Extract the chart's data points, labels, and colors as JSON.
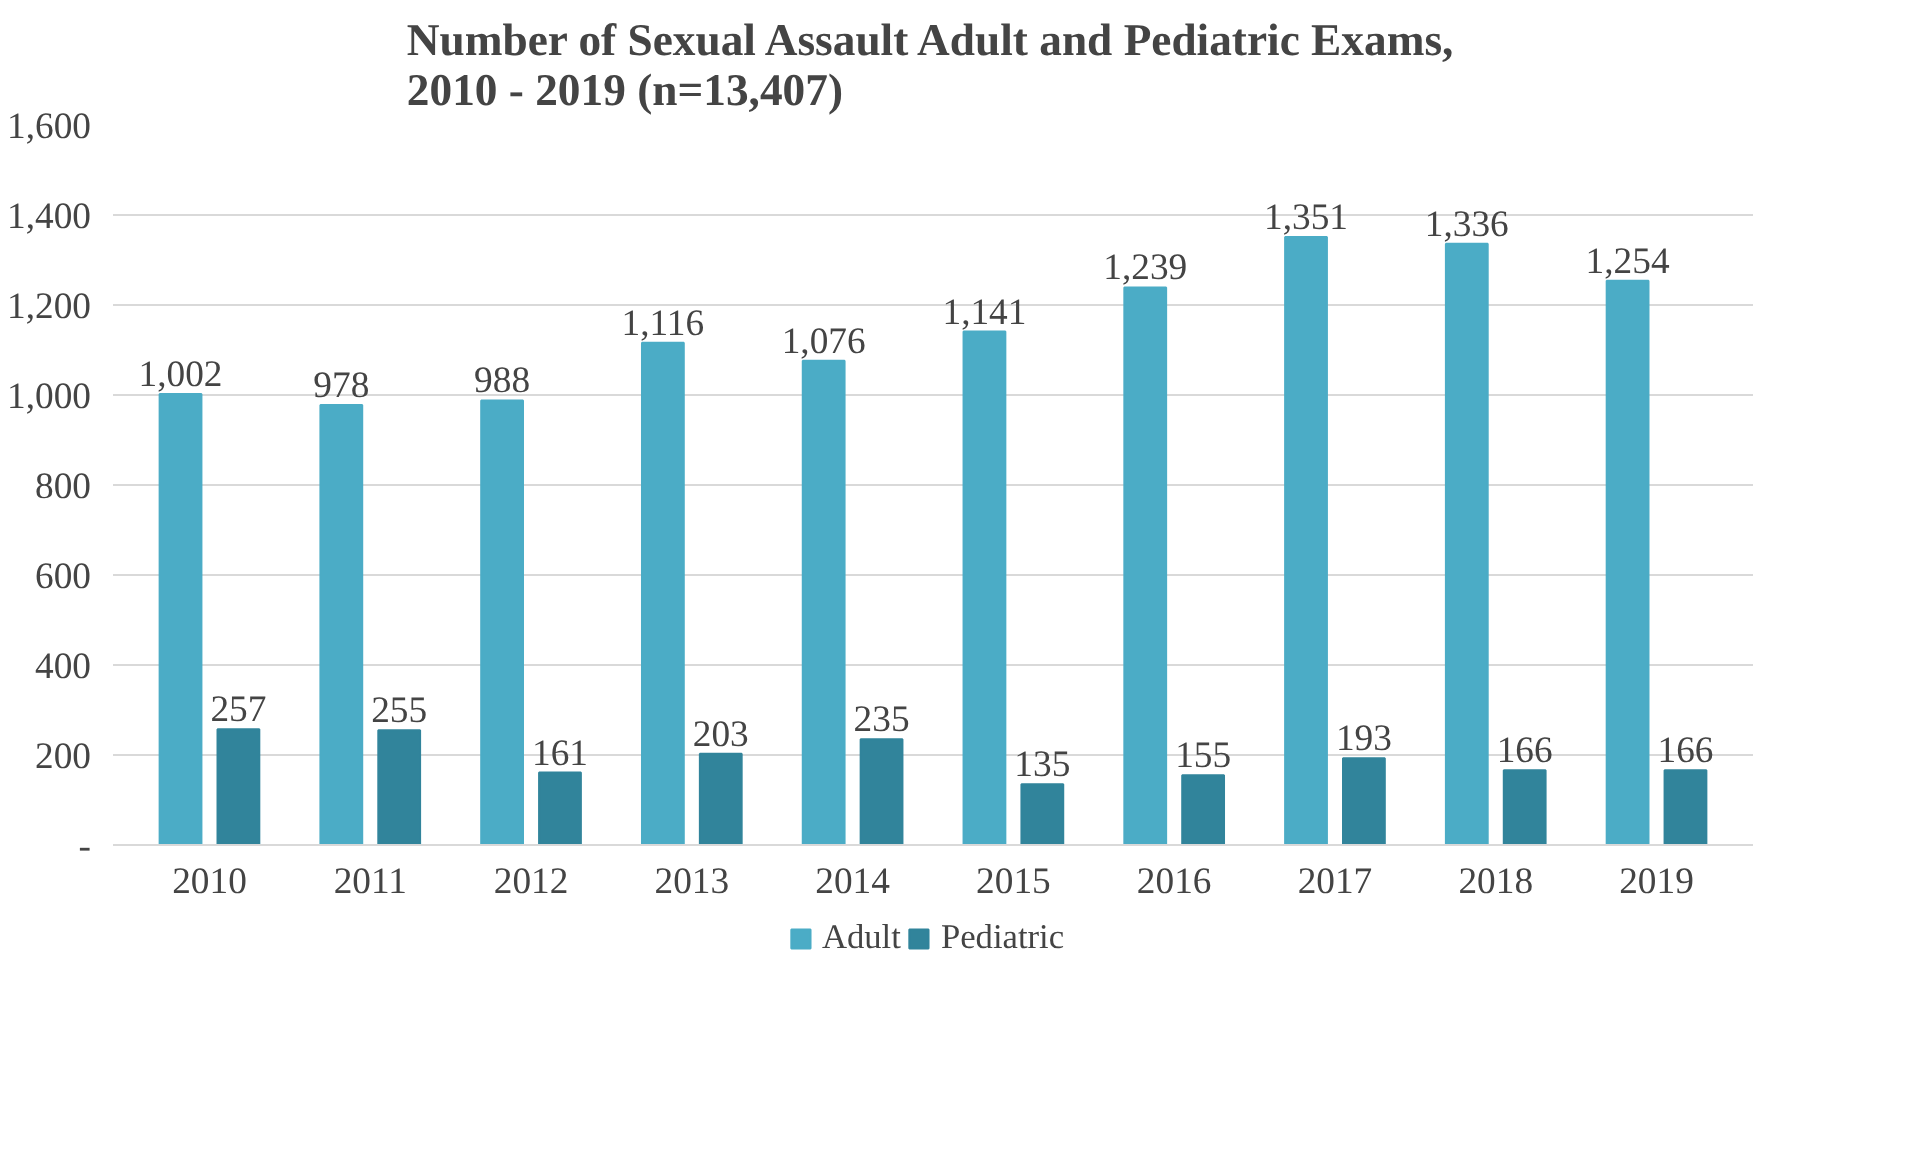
{
  "chart_data": {
    "type": "bar",
    "title": "Number of Sexual Assault Adult and Pediatric Exams,\n2010 - 2019 (n=13,407)",
    "categories": [
      "2010",
      "2011",
      "2012",
      "2013",
      "2014",
      "2015",
      "2016",
      "2017",
      "2018",
      "2019"
    ],
    "series": [
      {
        "name": "Adult",
        "color": "#4bacc6",
        "values": [
          1002,
          978,
          988,
          1116,
          1076,
          1141,
          1239,
          1351,
          1336,
          1254
        ],
        "value_labels": [
          "1,002",
          "978",
          "988",
          "1,116",
          "1,076",
          "1,141",
          "1,239",
          "1,351",
          "1,336",
          "1,254"
        ]
      },
      {
        "name": "Pediatric",
        "color": "#31849b",
        "values": [
          257,
          255,
          161,
          203,
          235,
          135,
          155,
          193,
          166,
          166
        ],
        "value_labels": [
          "257",
          "255",
          "161",
          "203",
          "235",
          "135",
          "155",
          "193",
          "166",
          "166"
        ]
      }
    ],
    "ylim": [
      0,
      1600
    ],
    "yticks": [
      {
        "value": 0,
        "label": "-"
      },
      {
        "value": 200,
        "label": "200"
      },
      {
        "value": 400,
        "label": "400"
      },
      {
        "value": 600,
        "label": "600"
      },
      {
        "value": 800,
        "label": "800"
      },
      {
        "value": 1000,
        "label": "1,000"
      },
      {
        "value": 1200,
        "label": "1,200"
      },
      {
        "value": 1400,
        "label": "1,400"
      },
      {
        "value": 1600,
        "label": "1,600"
      }
    ],
    "grid": "y",
    "legend": "bottom"
  }
}
